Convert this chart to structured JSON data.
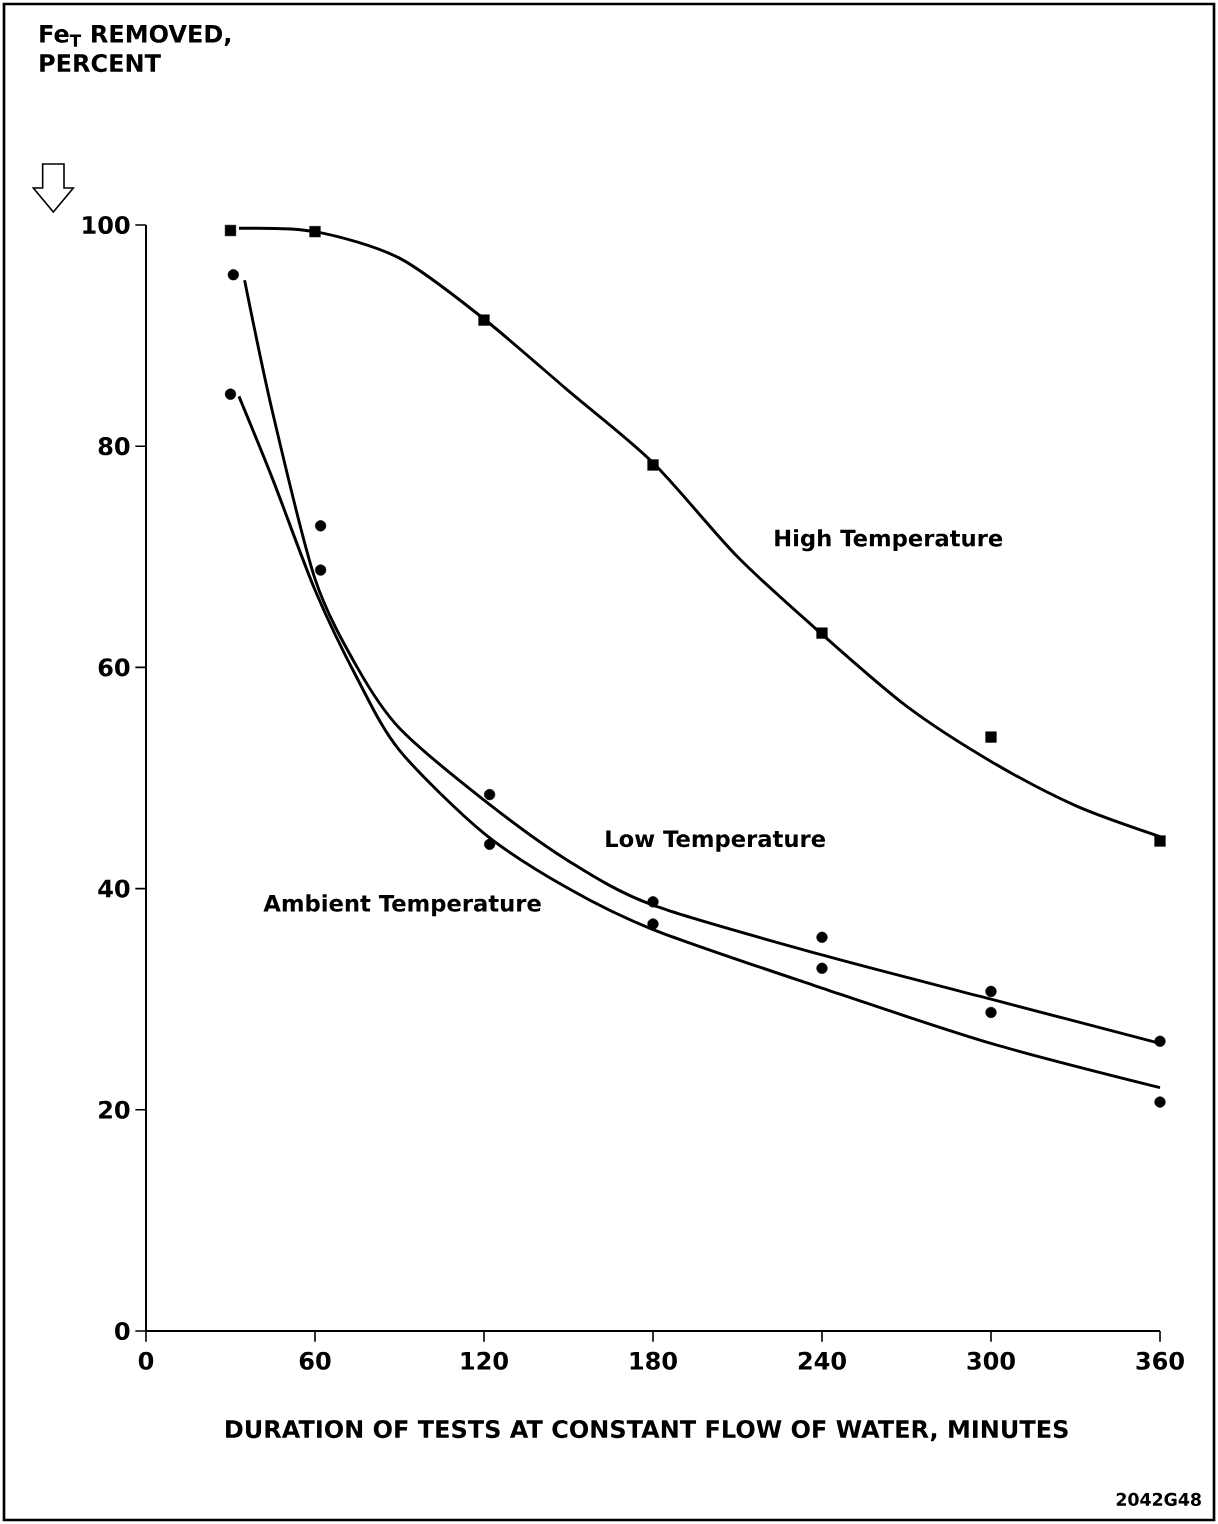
{
  "chart_data": {
    "type": "scatter",
    "xlabel": "DURATION OF TESTS  AT CONSTANT FLOW OF WATER, MINUTES",
    "annotations": [
      "Fe$_{T}$ REMOVED, PERCENT",
      "2042G48"
    ],
    "xlim": [
      0,
      360
    ],
    "xticks": [
      0,
      60,
      120,
      180,
      240,
      300,
      360
    ],
    "ylim": [
      0,
      100
    ],
    "yticks": [
      0,
      20,
      40,
      60,
      80,
      100
    ],
    "grid": false,
    "series": [
      {
        "marker": "square",
        "color": "#000000",
        "x": [
          30,
          60,
          120,
          180,
          240,
          300,
          360
        ],
        "values": [
          99.5,
          99.4,
          91.4,
          78.3,
          63.1,
          53.7,
          44.3
        ]
      },
      {
        "marker": "circle",
        "color": "#000000",
        "x": [
          31,
          62,
          122,
          180,
          240,
          300,
          360
        ],
        "values": [
          95.5,
          72.8,
          48.5,
          38.8,
          35.6,
          30.7,
          26.2
        ]
      },
      {
        "marker": "circle",
        "color": "#000000",
        "x": [
          30,
          62,
          122,
          180,
          240,
          300,
          360
        ],
        "values": [
          84.7,
          68.8,
          44.0,
          36.8,
          32.8,
          28.8,
          20.7
        ]
      },
      {
        "name": "High Temperature",
        "type": "line",
        "marker": "none",
        "color": "#000000",
        "x": [
          33,
          60,
          90,
          120,
          150,
          180,
          210,
          240,
          270,
          300,
          330,
          360
        ],
        "values": [
          99.7,
          99.4,
          97,
          91.5,
          85,
          78.5,
          70,
          63,
          56.5,
          51.5,
          47.5,
          44.7
        ]
      },
      {
        "name": "Low Temperature",
        "type": "line",
        "marker": "none",
        "color": "#000000",
        "x": [
          35,
          45,
          60,
          75,
          90,
          120,
          150,
          180,
          240,
          300,
          360
        ],
        "values": [
          95,
          83,
          68,
          60,
          54.5,
          48,
          42.5,
          38.5,
          34,
          30,
          26
        ]
      },
      {
        "name": "Ambient Temperature",
        "type": "line",
        "marker": "none",
        "color": "#000000",
        "x": [
          33,
          45,
          60,
          75,
          90,
          120,
          150,
          180,
          240,
          300,
          360
        ],
        "values": [
          84.5,
          77,
          67,
          59,
          52.5,
          45,
          40,
          36.3,
          31,
          26,
          22
        ]
      }
    ]
  }
}
